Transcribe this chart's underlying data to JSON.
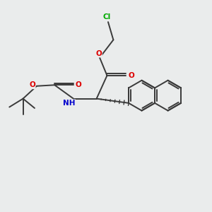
{
  "background_color": "#eaecec",
  "bond_color": "#3a3a3a",
  "atom_colors": {
    "O": "#dd0000",
    "N": "#0000cc",
    "Cl": "#00aa00",
    "C": "#3a3a3a"
  },
  "lw": 1.4,
  "fontsize": 7.5
}
